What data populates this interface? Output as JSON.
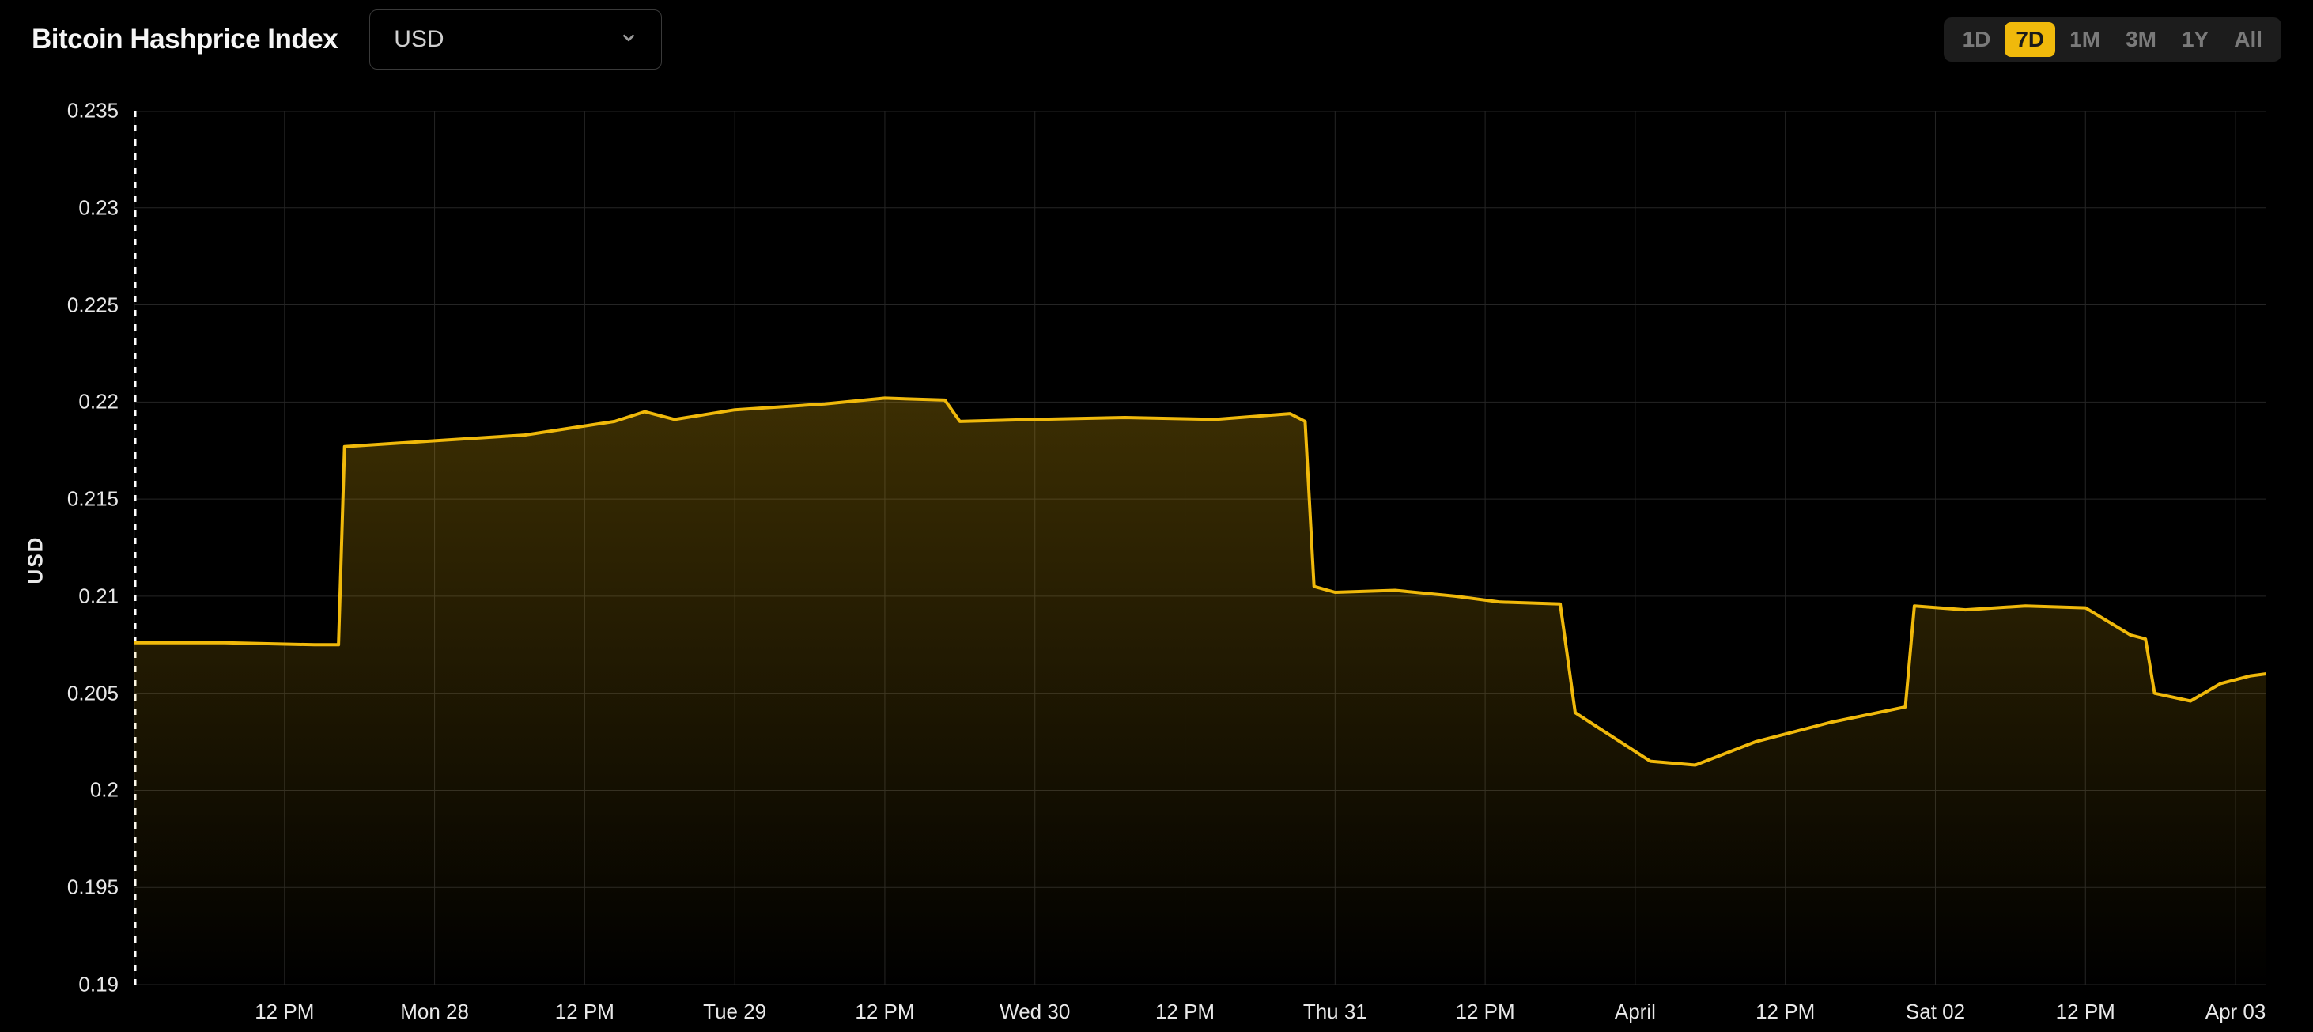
{
  "header": {
    "title": "Bitcoin Hashprice Index",
    "currency_selected": "USD",
    "ranges": [
      {
        "label": "1D",
        "active": false
      },
      {
        "label": "7D",
        "active": true
      },
      {
        "label": "1M",
        "active": false
      },
      {
        "label": "3M",
        "active": false
      },
      {
        "label": "1Y",
        "active": false
      },
      {
        "label": "All",
        "active": false
      }
    ]
  },
  "chart": {
    "type": "area-line",
    "y_axis_label": "USD",
    "background_color": "#000000",
    "grid_color": "#252525",
    "axis_color": "#888888",
    "line_color": "#f0b90b",
    "line_width": 4,
    "area_gradient_top": "rgba(240,185,11,0.25)",
    "area_gradient_bottom": "rgba(240,185,11,0.0)",
    "tick_font_color": "#e8e8e8",
    "tick_font_size": 26,
    "ylim": [
      0.19,
      0.235
    ],
    "y_ticks": [
      0.19,
      0.195,
      0.2,
      0.205,
      0.21,
      0.215,
      0.22,
      0.225,
      0.23,
      0.235
    ],
    "x_ticks": [
      {
        "t": 0.5,
        "label": "12 PM"
      },
      {
        "t": 1.0,
        "label": "Mon 28"
      },
      {
        "t": 1.5,
        "label": "12 PM"
      },
      {
        "t": 2.0,
        "label": "Tue 29"
      },
      {
        "t": 2.5,
        "label": "12 PM"
      },
      {
        "t": 3.0,
        "label": "Wed 30"
      },
      {
        "t": 3.5,
        "label": "12 PM"
      },
      {
        "t": 4.0,
        "label": "Thu 31"
      },
      {
        "t": 4.5,
        "label": "12 PM"
      },
      {
        "t": 5.0,
        "label": "April"
      },
      {
        "t": 5.5,
        "label": "12 PM"
      },
      {
        "t": 6.0,
        "label": "Sat 02"
      },
      {
        "t": 6.5,
        "label": "12 PM"
      },
      {
        "t": 7.0,
        "label": "Apr 03"
      }
    ],
    "xlim": [
      0,
      7.1
    ],
    "x_grid": [
      0,
      0.5,
      1,
      1.5,
      2,
      2.5,
      3,
      3.5,
      4,
      4.5,
      5,
      5.5,
      6,
      6.5,
      7
    ],
    "series": [
      {
        "t": 0.0,
        "v": 0.2076
      },
      {
        "t": 0.3,
        "v": 0.2076
      },
      {
        "t": 0.6,
        "v": 0.2075
      },
      {
        "t": 0.68,
        "v": 0.2075
      },
      {
        "t": 0.7,
        "v": 0.2177
      },
      {
        "t": 1.0,
        "v": 0.218
      },
      {
        "t": 1.3,
        "v": 0.2183
      },
      {
        "t": 1.6,
        "v": 0.219
      },
      {
        "t": 1.7,
        "v": 0.2195
      },
      {
        "t": 1.8,
        "v": 0.2191
      },
      {
        "t": 2.0,
        "v": 0.2196
      },
      {
        "t": 2.3,
        "v": 0.2199
      },
      {
        "t": 2.5,
        "v": 0.2202
      },
      {
        "t": 2.7,
        "v": 0.2201
      },
      {
        "t": 2.75,
        "v": 0.219
      },
      {
        "t": 3.0,
        "v": 0.2191
      },
      {
        "t": 3.3,
        "v": 0.2192
      },
      {
        "t": 3.6,
        "v": 0.2191
      },
      {
        "t": 3.85,
        "v": 0.2194
      },
      {
        "t": 3.9,
        "v": 0.219
      },
      {
        "t": 3.93,
        "v": 0.2105
      },
      {
        "t": 4.0,
        "v": 0.2102
      },
      {
        "t": 4.2,
        "v": 0.2103
      },
      {
        "t": 4.4,
        "v": 0.21
      },
      {
        "t": 4.55,
        "v": 0.2097
      },
      {
        "t": 4.75,
        "v": 0.2096
      },
      {
        "t": 4.8,
        "v": 0.204
      },
      {
        "t": 4.9,
        "v": 0.203
      },
      {
        "t": 5.05,
        "v": 0.2015
      },
      {
        "t": 5.2,
        "v": 0.2013
      },
      {
        "t": 5.4,
        "v": 0.2025
      },
      {
        "t": 5.65,
        "v": 0.2035
      },
      {
        "t": 5.9,
        "v": 0.2043
      },
      {
        "t": 5.93,
        "v": 0.2095
      },
      {
        "t": 6.1,
        "v": 0.2093
      },
      {
        "t": 6.3,
        "v": 0.2095
      },
      {
        "t": 6.5,
        "v": 0.2094
      },
      {
        "t": 6.65,
        "v": 0.208
      },
      {
        "t": 6.7,
        "v": 0.2078
      },
      {
        "t": 6.73,
        "v": 0.205
      },
      {
        "t": 6.85,
        "v": 0.2046
      },
      {
        "t": 6.95,
        "v": 0.2055
      },
      {
        "t": 7.05,
        "v": 0.2059
      },
      {
        "t": 7.1,
        "v": 0.206
      }
    ]
  }
}
